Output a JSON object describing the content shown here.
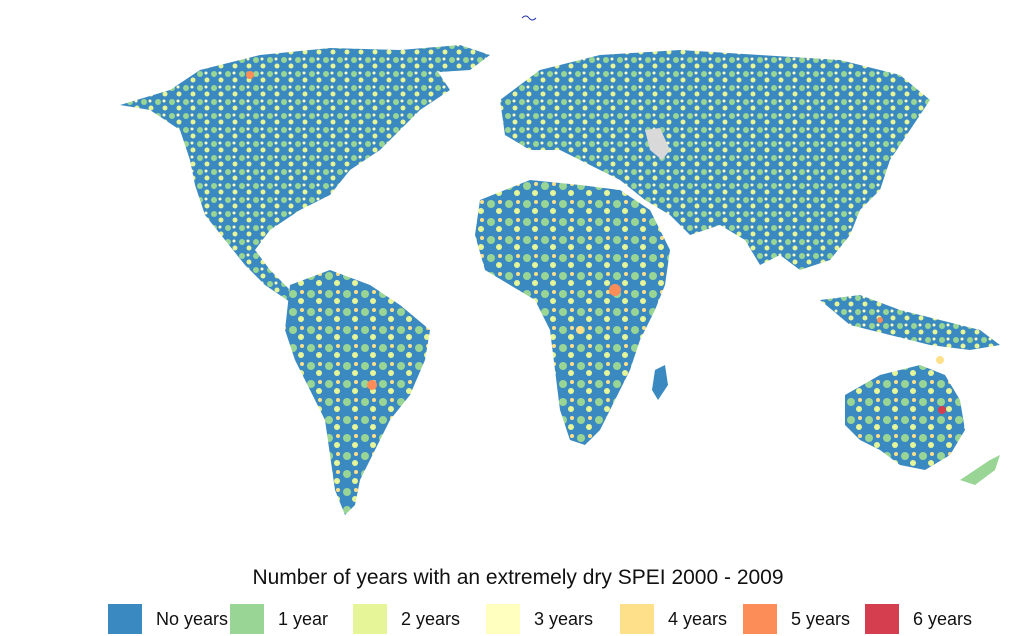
{
  "legend": {
    "title": "Number of years with an extremely dry SPEI 2000 - 2009",
    "items": [
      {
        "label": "No years",
        "color": "#3a89c0"
      },
      {
        "label": "1 year",
        "color": "#99d594"
      },
      {
        "label": "2 years",
        "color": "#e6f598"
      },
      {
        "label": "3 years",
        "color": "#ffffbf"
      },
      {
        "label": "4 years",
        "color": "#fee08b"
      },
      {
        "label": "5 years",
        "color": "#fc8d59"
      },
      {
        "label": "6 years",
        "color": "#d53e4f"
      }
    ]
  },
  "map": {
    "no_data_color": "#d9d9d9",
    "background_color": "#ffffff"
  }
}
